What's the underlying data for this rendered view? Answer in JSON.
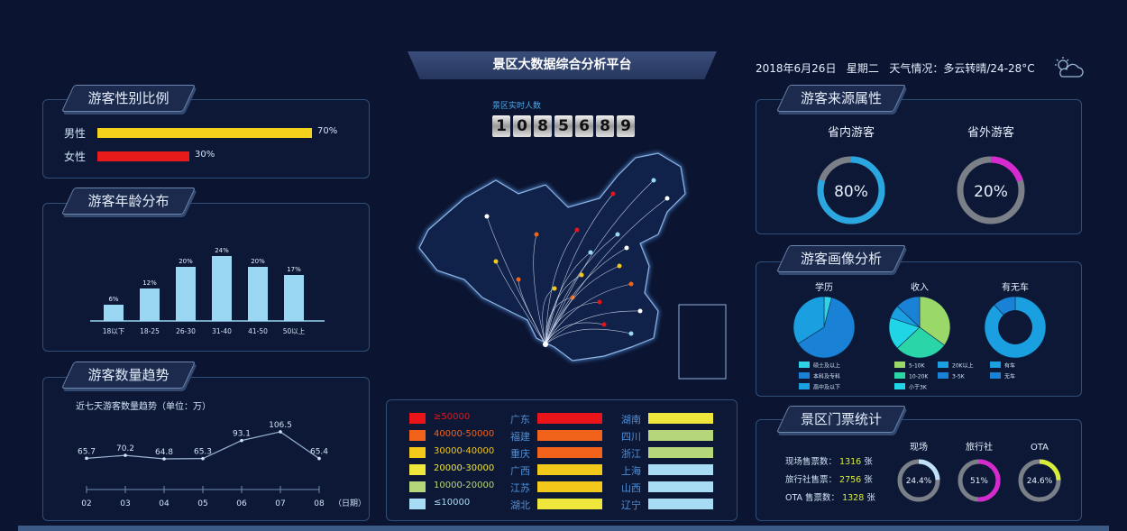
{
  "header": {
    "title": "景区大数据综合分析平台",
    "date": "2018年6月26日",
    "weekday": "星期二",
    "weather": "天气情况：多云转晴/24-28°C",
    "weather_icon": "partly-cloudy-icon"
  },
  "realtime": {
    "label": "景区实时人数",
    "digits": [
      "1",
      "0",
      "8",
      "5",
      "6",
      "8",
      "9"
    ]
  },
  "gender": {
    "title": "游客性别比例",
    "items": [
      {
        "label": "男性",
        "value": "70%",
        "pct": 70,
        "color": "#f2d21a"
      },
      {
        "label": "女性",
        "value": "30%",
        "pct": 30,
        "color": "#e81b1b"
      }
    ]
  },
  "age": {
    "title": "游客年龄分布",
    "chart_data": {
      "type": "bar",
      "categories": [
        "18以下",
        "18-25",
        "26-30",
        "31-40",
        "41-50",
        "50以上"
      ],
      "values": [
        6,
        12,
        20,
        24,
        20,
        17
      ],
      "labels": [
        "6%",
        "12%",
        "20%",
        "24%",
        "20%",
        "17%"
      ],
      "color": "#9ad7f2"
    }
  },
  "trend": {
    "title": "游客数量趋势",
    "subtitle": "近七天游客数量趋势（单位：万）",
    "xunit": "（日期）",
    "chart_data": {
      "type": "line",
      "x": [
        "02",
        "03",
        "04",
        "05",
        "06",
        "07",
        "08"
      ],
      "values": [
        65.7,
        70.2,
        64.8,
        65.3,
        93.1,
        106.5,
        65.4
      ],
      "labels": [
        "65.7",
        "70.2",
        "64.8",
        "65.3",
        "93.1",
        "106.5",
        "65.4"
      ]
    }
  },
  "legend": {
    "ranges": [
      {
        "label": "≥50000",
        "color": "#e8141a"
      },
      {
        "label": "40000-50000",
        "color": "#f0621a"
      },
      {
        "label": "30000-40000",
        "color": "#f2c81a"
      },
      {
        "label": "20000-30000",
        "color": "#eee63a"
      },
      {
        "label": "10000-20000",
        "color": "#b5d77a"
      },
      {
        "label": "≤10000",
        "color": "#a8dcf5"
      }
    ],
    "provinces_a": [
      {
        "name": "广东",
        "color": "#e8141a"
      },
      {
        "name": "福建",
        "color": "#f0621a"
      },
      {
        "name": "重庆",
        "color": "#f0621a"
      },
      {
        "name": "广西",
        "color": "#f2c81a"
      },
      {
        "name": "江苏",
        "color": "#f2c81a"
      },
      {
        "name": "湖北",
        "color": "#eee63a"
      }
    ],
    "provinces_b": [
      {
        "name": "湖南",
        "color": "#eee63a"
      },
      {
        "name": "四川",
        "color": "#b5d77a"
      },
      {
        "name": "浙江",
        "color": "#b5d77a"
      },
      {
        "name": "上海",
        "color": "#a8dcf5"
      },
      {
        "name": "山西",
        "color": "#a8dcf5"
      },
      {
        "name": "辽宁",
        "color": "#a8dcf5"
      }
    ]
  },
  "source": {
    "title": "游客来源属性",
    "items": [
      {
        "label": "省内游客",
        "value": "80%",
        "pct": 80,
        "color": "#2aa6e0"
      },
      {
        "label": "省外游客",
        "value": "20%",
        "pct": 20,
        "color": "#d62ad0"
      }
    ]
  },
  "profile": {
    "title": "游客画像分析",
    "charts": [
      {
        "title": "学历",
        "slices": [
          {
            "label": "硕士及以上",
            "value": 4,
            "color": "#2fd3e6"
          },
          {
            "label": "本科及专科",
            "value": 62,
            "color": "#1a82d6"
          },
          {
            "label": "高中及以下",
            "value": 34,
            "color": "#1aa0e0"
          }
        ]
      },
      {
        "title": "收入",
        "slices": [
          {
            "label": "5-10K",
            "value": 35,
            "color": "#9ad86a"
          },
          {
            "label": "10-20K",
            "value": 28,
            "color": "#2ad6a8"
          },
          {
            "label": "小于3K",
            "value": 17,
            "color": "#20d6e6"
          },
          {
            "label": "20K以上",
            "value": 7,
            "color": "#1aa0e0"
          },
          {
            "label": "3-5K",
            "value": 13,
            "color": "#1a82d6"
          }
        ]
      },
      {
        "title": "有无车",
        "slices": [
          {
            "label": "有车",
            "value": 88,
            "color": "#1aa0e0"
          },
          {
            "label": "无车",
            "value": 12,
            "color": "#1a82d6"
          }
        ]
      }
    ]
  },
  "tickets": {
    "title": "景区门票统计",
    "rows": [
      {
        "label": "现场售票数：",
        "value": "1316",
        "unit": "张"
      },
      {
        "label": "旅行社售票：",
        "value": "2756",
        "unit": "张"
      },
      {
        "label": "OTA 售票数：",
        "value": "1328",
        "unit": "张"
      }
    ],
    "rings": [
      {
        "label": "现场",
        "value": "24.4%",
        "pct": 24.4,
        "color": "#bfe0f5"
      },
      {
        "label": "旅行社",
        "value": "51%",
        "pct": 51,
        "color": "#d62ad0"
      },
      {
        "label": "OTA",
        "value": "24.6%",
        "pct": 24.6,
        "color": "#d8ec3a"
      }
    ]
  }
}
